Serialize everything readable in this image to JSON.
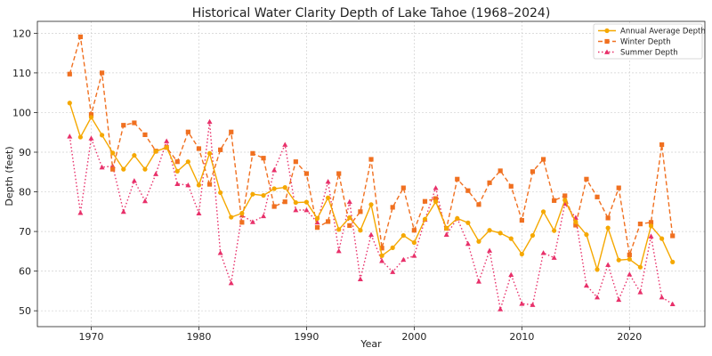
{
  "chart_data": {
    "type": "line",
    "title": "Historical Water Clarity Depth of Lake Tahoe (1968–2024)",
    "xlabel": "Year",
    "ylabel": "Depth (feet)",
    "xlim": [
      1965,
      2027
    ],
    "ylim": [
      46,
      123
    ],
    "xticks": [
      1970,
      1980,
      1990,
      2000,
      2010,
      2020
    ],
    "yticks": [
      50,
      60,
      70,
      80,
      90,
      100,
      110,
      120
    ],
    "grid": true,
    "legend_position": "top-right",
    "x": [
      1968,
      1969,
      1970,
      1971,
      1972,
      1973,
      1974,
      1975,
      1976,
      1977,
      1978,
      1979,
      1980,
      1981,
      1982,
      1983,
      1984,
      1985,
      1986,
      1987,
      1988,
      1989,
      1990,
      1991,
      1992,
      1993,
      1994,
      1995,
      1996,
      1997,
      1998,
      1999,
      2000,
      2001,
      2002,
      2003,
      2004,
      2005,
      2006,
      2007,
      2008,
      2009,
      2010,
      2011,
      2012,
      2013,
      2014,
      2015,
      2016,
      2017,
      2018,
      2019,
      2020,
      2021,
      2022,
      2023,
      2024
    ],
    "series": [
      {
        "name": "Annual Average Depth",
        "color": "#F5A800",
        "style": "solid",
        "marker": "circle",
        "values": [
          102.4,
          93.8,
          98.8,
          94.3,
          89.8,
          85.7,
          89.2,
          85.7,
          90.2,
          91.2,
          85.2,
          87.6,
          81.7,
          89.7,
          79.8,
          73.6,
          74.6,
          79.4,
          79.1,
          80.8,
          81.1,
          77.3,
          77.4,
          73.3,
          78.5,
          70.5,
          73.5,
          70.3,
          76.8,
          63.9,
          65.9,
          69.0,
          67.2,
          73.1,
          77.5,
          70.8,
          73.3,
          72.2,
          67.5,
          70.3,
          69.6,
          68.2,
          64.3,
          69.0,
          75.0,
          70.2,
          77.9,
          72.4,
          69.2,
          60.4,
          70.9,
          62.8,
          63.0,
          61.0,
          71.4,
          68.2,
          62.3
        ]
      },
      {
        "name": "Winter Depth",
        "color": "#F07020",
        "style": "dashed",
        "marker": "square",
        "values": [
          109.7,
          119.1,
          99.5,
          110.0,
          85.7,
          96.8,
          97.4,
          94.4,
          90.3,
          91.2,
          87.6,
          95.1,
          90.9,
          81.9,
          90.6,
          95.1,
          72.3,
          89.7,
          88.5,
          76.3,
          77.5,
          87.6,
          84.6,
          71.0,
          72.5,
          84.6,
          71.5,
          75.0,
          88.2,
          65.8,
          76.1,
          81.0,
          70.3,
          77.6,
          78.3,
          70.8,
          83.2,
          80.3,
          76.8,
          82.3,
          85.3,
          81.4,
          72.8,
          85.1,
          88.2,
          77.8,
          79.0,
          71.6,
          83.2,
          78.7,
          73.4,
          81.0,
          64.1,
          71.9,
          72.3,
          91.9,
          68.9
        ]
      },
      {
        "name": "Summer Depth",
        "color": "#E8306A",
        "style": "dotted",
        "marker": "triangle",
        "values": [
          94.0,
          74.7,
          93.5,
          86.2,
          86.5,
          75.0,
          82.8,
          77.7,
          84.5,
          92.8,
          82.0,
          81.7,
          74.6,
          97.7,
          64.6,
          57.0,
          74.1,
          72.4,
          73.9,
          85.5,
          91.9,
          75.4,
          75.4,
          72.3,
          82.6,
          65.1,
          77.5,
          58.0,
          69.2,
          62.6,
          59.8,
          62.9,
          63.9,
          73.0,
          81.0,
          69.2,
          73.3,
          66.9,
          57.4,
          65.2,
          50.4,
          59.1,
          51.8,
          51.5,
          64.6,
          63.4,
          77.0,
          73.5,
          56.4,
          53.4,
          61.6,
          52.8,
          59.2,
          54.7,
          68.8,
          53.4,
          51.7
        ]
      }
    ]
  }
}
